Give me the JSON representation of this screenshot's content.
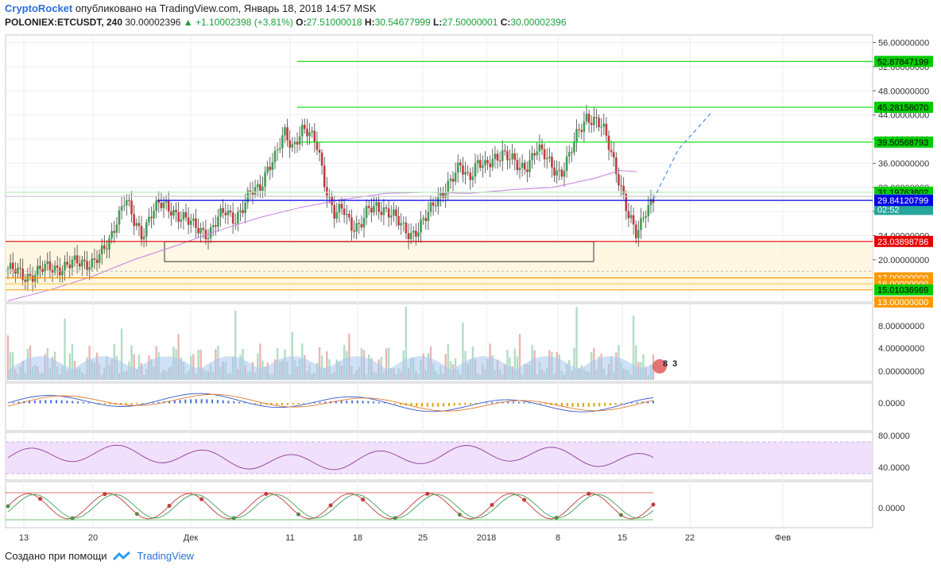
{
  "header": {
    "brand": "CryptoRocket",
    "published": "опубликовано на TradingView.com, Январь 18, 2018 14:57 MSK",
    "symbol": "POLONIEX:ETCUSDT, 240",
    "last": "30.00002396",
    "change": "+1.10002398 (+3.81%)",
    "open_label": "O:",
    "open": "27.51000018",
    "high_label": "H:",
    "high": "30.54677999",
    "low_label": "L:",
    "low": "27.50000001",
    "close_label": "C:",
    "close": "30.00002396"
  },
  "footer": {
    "created_with": "Создано при помощи",
    "tradingview": "TradingView"
  },
  "colors": {
    "up": "#26a69a",
    "down": "#ef5350",
    "green_level": "#00e600",
    "blue_level": "#0000e6",
    "red_level": "#e60000",
    "orange_level": "#ff9800",
    "ma": "#c77ee0"
  },
  "chart_data": {
    "type": "candlestick",
    "symbol": "POLONIEX:ETCUSDT",
    "interval": "240",
    "x_ticks": [
      "13",
      "20",
      "Дек",
      "11",
      "18",
      "25",
      "2018",
      "8",
      "15",
      "22",
      "Фев"
    ],
    "price_ticks": [
      "56.00000000",
      "52.00000000",
      "48.00000000",
      "44.00000000",
      "40.00000000",
      "36.00000000",
      "32.00000000",
      "28.00000000",
      "24.00000000",
      "20.00000000"
    ],
    "price_ylim": [
      13,
      57
    ],
    "levels": [
      {
        "label": "52.87847199",
        "value": 52.878,
        "color": "#00cc00",
        "text_color": "#000000"
      },
      {
        "label": "45.28156070",
        "value": 45.282,
        "color": "#00cc00",
        "text_color": "#000000"
      },
      {
        "label": "39.50568793",
        "value": 39.506,
        "color": "#00cc00",
        "text_color": "#000000"
      },
      {
        "label": "31.19763802",
        "value": 31.198,
        "color": "#00cc00",
        "text_color": "#000000"
      },
      {
        "label": "30.00002396",
        "value": 30.0,
        "color": "#26a69a",
        "text_color": "#ffffff"
      },
      {
        "label": "02:52",
        "value": 28.35,
        "color": "#26a69a",
        "text_color": "#ffffff"
      },
      {
        "label": "29.84120799",
        "value": 29.841,
        "color": "#0000e6",
        "text_color": "#ffffff"
      },
      {
        "label": "23.03898786",
        "value": 23.039,
        "color": "#e60000",
        "text_color": "#ffffff"
      },
      {
        "label": "17.00000000",
        "value": 17.0,
        "color": "#ff9800",
        "text_color": "#ffffff"
      },
      {
        "label": "16.00000000",
        "value": 16.0,
        "color": "#ff9800",
        "text_color": "#ffffff"
      },
      {
        "label": "15.01036969",
        "value": 15.01,
        "color": "#00cc00",
        "text_color": "#000000"
      },
      {
        "label": "13.00000000",
        "value": 13.0,
        "color": "#ff9800",
        "text_color": "#ffffff"
      }
    ],
    "volume_ticks": [
      "8.00000000",
      "4.00000000",
      "0.00000000"
    ],
    "volume_badges": [
      "8",
      "3"
    ],
    "macd_ticks": [
      "0.0000"
    ],
    "rsi_ticks": [
      "80.0000",
      "40.0000"
    ],
    "stoch_ticks": [
      "0.0000"
    ],
    "close_path": [
      [
        0,
        18.5
      ],
      [
        4,
        17.2
      ],
      [
        8,
        18.3
      ],
      [
        12,
        18.8
      ],
      [
        16,
        19.3
      ],
      [
        20,
        19.8
      ],
      [
        22,
        20.5
      ],
      [
        24,
        22.5
      ],
      [
        26,
        27.0
      ],
      [
        28,
        30.5
      ],
      [
        30,
        26.0
      ],
      [
        32,
        24.0
      ],
      [
        34,
        28.0
      ],
      [
        36,
        29.0
      ],
      [
        38,
        28.5
      ],
      [
        40,
        28.0
      ],
      [
        42,
        27.0
      ],
      [
        44,
        25.5
      ],
      [
        46,
        25.0
      ],
      [
        48,
        24.5
      ],
      [
        50,
        26.5
      ],
      [
        52,
        28.0
      ],
      [
        54,
        27.0
      ],
      [
        56,
        28.5
      ],
      [
        58,
        31.0
      ],
      [
        60,
        32.0
      ],
      [
        62,
        35.5
      ],
      [
        64,
        37.0
      ],
      [
        66,
        41.0
      ],
      [
        68,
        39.0
      ],
      [
        70,
        41.5
      ],
      [
        72,
        40.5
      ],
      [
        74,
        39.0
      ],
      [
        76,
        31.5
      ],
      [
        78,
        27.0
      ],
      [
        80,
        28.5
      ],
      [
        82,
        26.0
      ],
      [
        84,
        25.5
      ],
      [
        86,
        28.0
      ],
      [
        88,
        29.0
      ],
      [
        90,
        28.5
      ],
      [
        92,
        27.0
      ],
      [
        94,
        25.5
      ],
      [
        96,
        24.5
      ],
      [
        98,
        25.0
      ],
      [
        100,
        27.0
      ],
      [
        102,
        30.0
      ],
      [
        104,
        31.5
      ],
      [
        106,
        33.0
      ],
      [
        108,
        35.5
      ],
      [
        110,
        34.0
      ],
      [
        112,
        36.0
      ],
      [
        114,
        35.0
      ],
      [
        116,
        37.0
      ],
      [
        118,
        38.0
      ],
      [
        120,
        36.5
      ],
      [
        122,
        35.0
      ],
      [
        124,
        36.0
      ],
      [
        126,
        38.5
      ],
      [
        128,
        37.0
      ],
      [
        130,
        35.5
      ],
      [
        132,
        34.5
      ],
      [
        134,
        37.0
      ],
      [
        136,
        41.0
      ],
      [
        138,
        44.0
      ],
      [
        140,
        43.0
      ],
      [
        142,
        41.5
      ],
      [
        144,
        38.0
      ],
      [
        146,
        33.0
      ],
      [
        148,
        27.0
      ],
      [
        150,
        24.0
      ],
      [
        152,
        28.5
      ],
      [
        154,
        30.0
      ]
    ],
    "ma_path": [
      [
        0,
        13.2
      ],
      [
        10,
        15.0
      ],
      [
        20,
        17.2
      ],
      [
        30,
        20.0
      ],
      [
        40,
        22.3
      ],
      [
        50,
        24.8
      ],
      [
        60,
        27.0
      ],
      [
        70,
        28.7
      ],
      [
        80,
        30.0
      ],
      [
        90,
        31.0
      ],
      [
        100,
        31.2
      ],
      [
        110,
        31.0
      ],
      [
        120,
        31.6
      ],
      [
        130,
        32.0
      ],
      [
        140,
        33.5
      ],
      [
        146,
        34.8
      ],
      [
        150,
        34.6
      ]
    ],
    "projection": [
      [
        154,
        30.0
      ],
      [
        160,
        38.3
      ],
      [
        168,
        44.5
      ]
    ]
  }
}
